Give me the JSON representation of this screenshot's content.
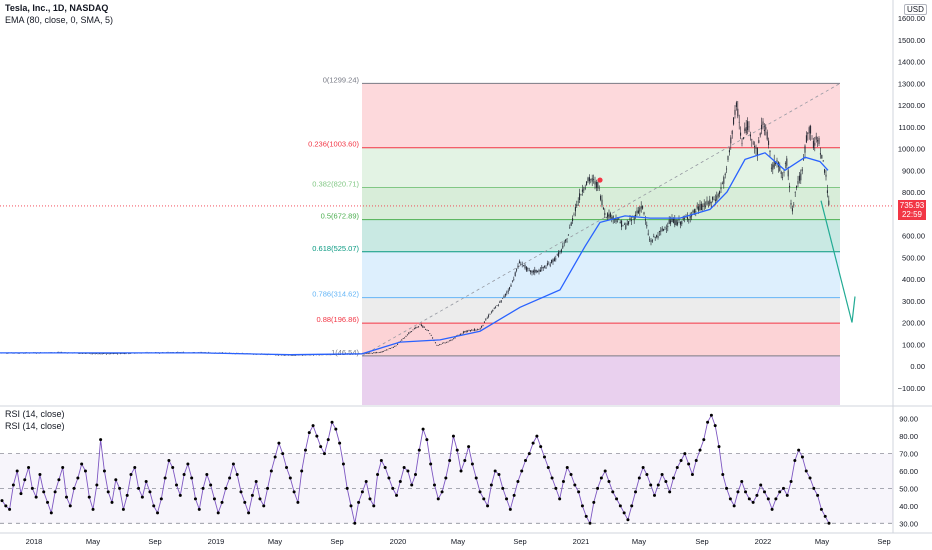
{
  "header": {
    "symbol_line": "Tesla, Inc., 1D, NASDAQ",
    "ema_line": "EMA (80, close, 0, SMA, 5)",
    "currency": "USD"
  },
  "rsi_panel": {
    "label_1": "RSI (14, close)",
    "label_2": "RSI (14, close)"
  },
  "price_badge": {
    "price": "735.93",
    "time": "22:59"
  },
  "colors": {
    "candle": "#1e222d",
    "ema": "#2962ff",
    "rsi_line": "#7e57c2",
    "rsi_dot": "#000000",
    "badge": "#f23645",
    "arrow": "#22ab94",
    "trend": "#9598a1"
  },
  "chart_data": [
    {
      "type": "candlestick",
      "title": "Tesla, Inc., 1D, NASDAQ",
      "indicator": "EMA (80, close, 0, SMA, 5)",
      "y_axis_ticks": [
        1600,
        1500,
        1400,
        1300,
        1200,
        1100,
        1000,
        900,
        800,
        700,
        600,
        500,
        400,
        300,
        200,
        100,
        0,
        -100
      ],
      "y_axis_tick_labels": [
        "1600.00",
        "1500.00",
        "1400.00",
        "1300.00",
        "1200.00",
        "1100.00",
        "1000.00",
        "900.00",
        "800.00",
        "700.00",
        "600.00",
        "500.00",
        "400.00",
        "300.00",
        "200.00",
        "100.00",
        "0.00",
        "−100.00"
      ],
      "x_axis_labels": [
        "2018",
        "May",
        "Sep",
        "2019",
        "May",
        "Sep",
        "2020",
        "May",
        "Sep",
        "2021",
        "May",
        "Sep",
        "2022",
        "May",
        "Sep"
      ],
      "last_price": 735.93,
      "fib_levels": [
        {
          "label": "0(1299.24)",
          "value": 1299.24,
          "color": "#787b86"
        },
        {
          "label": "0.236(1003.60)",
          "value": 1003.6,
          "color": "#f23645"
        },
        {
          "label": "0.382(820.71)",
          "value": 820.71,
          "color": "#81c784"
        },
        {
          "label": "0.5(672.89)",
          "value": 672.89,
          "color": "#4caf50"
        },
        {
          "label": "0.618(525.07)",
          "value": 525.07,
          "color": "#089981"
        },
        {
          "label": "0.786(314.62)",
          "value": 314.62,
          "color": "#64b5f6"
        },
        {
          "label": "0.88(196.86)",
          "value": 196.86,
          "color": "#f23645"
        },
        {
          "label": "1(46.54)",
          "value": 46.54,
          "color": "#787b86"
        }
      ],
      "fib_zone_colors": [
        "#f7525f",
        "#81c784",
        "#4caf50",
        "#089981",
        "#64b5f6",
        "#a8a8a8",
        "#f23645",
        "#9c27b0"
      ],
      "price_series": [
        [
          0,
          60
        ],
        [
          25,
          60
        ],
        [
          60,
          62
        ],
        [
          100,
          56
        ],
        [
          140,
          60
        ],
        [
          180,
          62
        ],
        [
          210,
          61
        ],
        [
          250,
          56
        ],
        [
          290,
          50
        ],
        [
          330,
          53
        ],
        [
          362,
          57
        ],
        [
          380,
          62
        ],
        [
          395,
          90
        ],
        [
          410,
          155
        ],
        [
          420,
          190
        ],
        [
          428,
          165
        ],
        [
          437,
          95
        ],
        [
          450,
          115
        ],
        [
          465,
          160
        ],
        [
          480,
          170
        ],
        [
          490,
          240
        ],
        [
          500,
          290
        ],
        [
          510,
          360
        ],
        [
          520,
          480
        ],
        [
          530,
          430
        ],
        [
          540,
          440
        ],
        [
          550,
          470
        ],
        [
          560,
          520
        ],
        [
          567,
          580
        ],
        [
          575,
          720
        ],
        [
          583,
          820
        ],
        [
          590,
          860
        ],
        [
          598,
          830
        ],
        [
          605,
          700
        ],
        [
          615,
          680
        ],
        [
          625,
          640
        ],
        [
          635,
          690
        ],
        [
          642,
          740
        ],
        [
          650,
          570
        ],
        [
          660,
          610
        ],
        [
          670,
          665
        ],
        [
          680,
          660
        ],
        [
          690,
          690
        ],
        [
          700,
          730
        ],
        [
          710,
          750
        ],
        [
          718,
          780
        ],
        [
          726,
          880
        ],
        [
          733,
          1110
        ],
        [
          737,
          1200
        ],
        [
          742,
          1020
        ],
        [
          747,
          1110
        ],
        [
          752,
          1060
        ],
        [
          757,
          970
        ],
        [
          762,
          1120
        ],
        [
          767,
          1070
        ],
        [
          772,
          900
        ],
        [
          777,
          960
        ],
        [
          782,
          860
        ],
        [
          787,
          940
        ],
        [
          792,
          710
        ],
        [
          797,
          840
        ],
        [
          802,
          880
        ],
        [
          806,
          1040
        ],
        [
          810,
          1100
        ],
        [
          814,
          1000
        ],
        [
          818,
          1060
        ],
        [
          822,
          950
        ],
        [
          826,
          880
        ],
        [
          829,
          736
        ]
      ],
      "ema_series": [
        [
          0,
          60
        ],
        [
          100,
          60
        ],
        [
          200,
          60
        ],
        [
          290,
          52
        ],
        [
          362,
          56
        ],
        [
          400,
          110
        ],
        [
          440,
          120
        ],
        [
          480,
          160
        ],
        [
          520,
          270
        ],
        [
          560,
          350
        ],
        [
          585,
          550
        ],
        [
          600,
          660
        ],
        [
          625,
          690
        ],
        [
          650,
          680
        ],
        [
          680,
          680
        ],
        [
          710,
          720
        ],
        [
          727,
          800
        ],
        [
          745,
          950
        ],
        [
          765,
          980
        ],
        [
          785,
          900
        ],
        [
          805,
          960
        ],
        [
          820,
          940
        ],
        [
          828,
          900
        ]
      ],
      "projection_arrow": {
        "from": 760,
        "to": 200
      }
    },
    {
      "type": "line",
      "title": "RSI (14, close)",
      "y_axis_ticks": [
        90,
        80,
        70,
        60,
        50,
        40,
        30
      ],
      "y_axis_tick_labels": [
        "90.00",
        "80.00",
        "70.00",
        "60.00",
        "50.00",
        "40.00",
        "30.00"
      ],
      "bands": {
        "upper": 70,
        "middle": 50,
        "lower": 30
      },
      "series": [
        {
          "values": [
            43,
            40,
            38,
            52,
            60,
            47,
            55,
            62,
            50,
            45,
            58,
            48,
            42,
            36,
            48,
            55,
            62,
            45,
            40,
            50,
            56,
            64,
            60,
            45,
            38,
            52,
            78,
            60,
            48,
            42,
            55,
            50,
            38,
            46,
            58,
            62,
            50,
            45,
            54,
            48,
            40,
            36,
            44,
            56,
            66,
            62,
            52,
            46,
            58,
            64,
            56,
            44,
            38,
            50,
            58,
            52,
            44,
            36,
            42,
            50,
            56,
            64,
            58,
            48,
            42,
            36,
            46,
            54,
            44,
            40,
            50,
            60,
            68,
            76,
            70,
            62,
            56,
            48,
            42,
            60,
            72,
            82,
            86,
            80,
            74,
            70,
            78,
            88,
            84,
            76,
            64,
            50,
            40,
            30,
            42,
            48,
            54,
            44,
            40,
            58,
            66,
            62,
            56,
            50,
            46,
            54,
            62,
            60,
            52,
            58,
            72,
            84,
            78,
            64,
            52,
            44,
            48,
            56,
            66,
            80,
            72,
            60,
            66,
            74,
            64,
            56,
            48,
            44,
            40,
            52,
            60,
            58,
            50,
            44,
            38,
            46,
            54,
            60,
            66,
            70,
            76,
            80,
            74,
            68,
            62,
            56,
            50,
            44,
            54,
            62,
            58,
            52,
            48,
            40,
            34,
            30,
            42,
            50,
            56,
            60,
            54,
            48,
            44,
            40,
            36,
            32,
            40,
            48,
            56,
            62,
            58,
            52,
            46,
            52,
            58,
            54,
            48,
            56,
            62,
            66,
            70,
            64,
            58,
            66,
            72,
            78,
            88,
            92,
            86,
            74,
            58,
            50,
            44,
            40,
            48,
            54,
            48,
            44,
            42,
            46,
            52,
            48,
            44,
            38,
            44,
            48,
            50,
            46,
            54,
            66,
            72,
            68,
            60,
            56,
            50,
            46,
            38,
            34,
            30
          ]
        }
      ]
    }
  ]
}
